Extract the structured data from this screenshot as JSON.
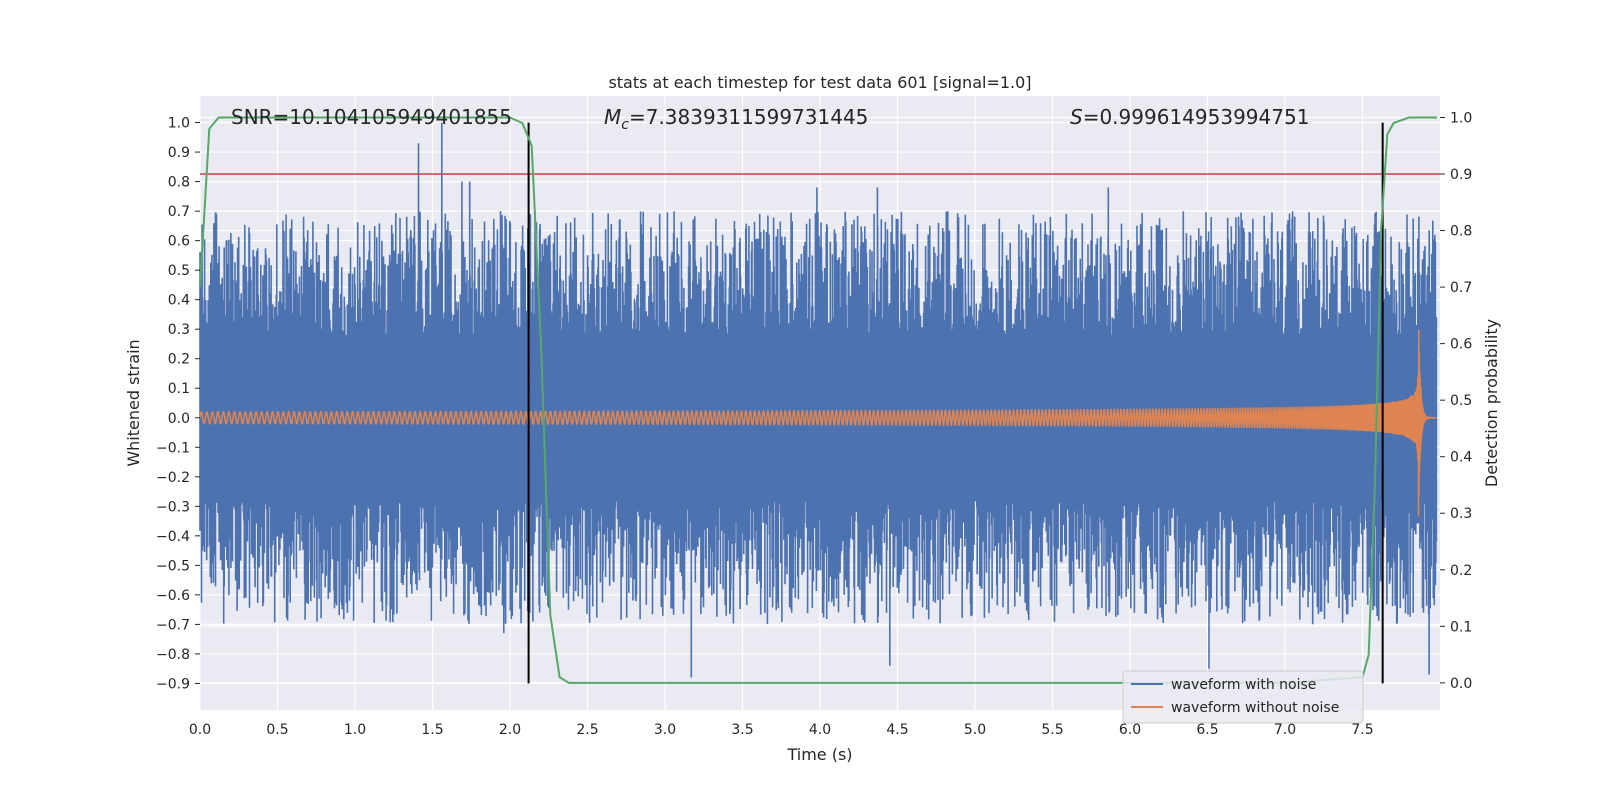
{
  "chart_data": {
    "type": "line",
    "title": "stats at each timestep for test data 601 [signal=1.0]",
    "xlabel": "Time (s)",
    "ylabel": "Whitened strain",
    "y2label": "Detection probability",
    "xlim": [
      0.0,
      8.0
    ],
    "ylim": [
      -0.99,
      1.09
    ],
    "y2lim": [
      -0.048,
      1.038
    ],
    "x_ticks": [
      "0.0",
      "0.5",
      "1.0",
      "1.5",
      "2.0",
      "2.5",
      "3.0",
      "3.5",
      "4.0",
      "4.5",
      "5.0",
      "5.5",
      "6.0",
      "6.5",
      "7.0",
      "7.5"
    ],
    "y_ticks": [
      "1.0",
      "0.9",
      "0.8",
      "0.7",
      "0.6",
      "0.5",
      "0.4",
      "0.3",
      "0.2",
      "0.1",
      "0.0",
      "−0.1",
      "−0.2",
      "−0.3",
      "−0.4",
      "−0.5",
      "−0.6",
      "−0.7",
      "−0.8",
      "−0.9"
    ],
    "y2_ticks": [
      "1.0",
      "0.9",
      "0.8",
      "0.7",
      "0.6",
      "0.5",
      "0.4",
      "0.3",
      "0.2",
      "0.1",
      "0.0"
    ],
    "grid": true,
    "annotations": {
      "snr": "SNR=10.104105949401855",
      "mc_symbol": "M",
      "mc_sub": "c",
      "mc_value": "=7.3839311599731445",
      "s_symbol": "S",
      "s_value": "=0.999614953994751"
    },
    "threshold": {
      "axis": "right",
      "value": 0.9,
      "color": "#c44e52"
    },
    "vertical_lines": [
      {
        "x": 2.12,
        "y_from": -0.9,
        "y_to": 1.0,
        "color": "#000000"
      },
      {
        "x": 7.63,
        "y_from": -0.9,
        "y_to": 1.0,
        "color": "#000000"
      }
    ],
    "series": [
      {
        "name": "waveform with noise",
        "axis": "left",
        "color": "#4c72b0",
        "description_of_shape": "noise",
        "envelope_bulk": [
          -0.25,
          0.25
        ],
        "spikes": [
          {
            "x": 1.41,
            "y": 0.93
          },
          {
            "x": 1.56,
            "y": 1.0
          },
          {
            "x": 1.69,
            "y": 0.8
          },
          {
            "x": 1.74,
            "y": 0.8
          },
          {
            "x": 3.17,
            "y": -0.88
          },
          {
            "x": 4.45,
            "y": -0.84
          },
          {
            "x": 3.98,
            "y": 0.78
          },
          {
            "x": 4.37,
            "y": 0.78
          },
          {
            "x": 5.86,
            "y": 0.78
          },
          {
            "x": 6.51,
            "y": -0.85
          },
          {
            "x": 7.93,
            "y": -0.87
          },
          {
            "x": 1.96,
            "y": -0.73
          }
        ]
      },
      {
        "name": "waveform without noise",
        "axis": "left",
        "color": "#dd8452",
        "description_of_shape": "chirp",
        "amp_start": 0.02,
        "amp_peak": 0.38,
        "x_merger": 7.86,
        "x_end": 7.98
      },
      {
        "name": "",
        "axis": "right",
        "color": "#55a868",
        "x": [
          0.0,
          0.06,
          0.12,
          1.5,
          2.0,
          2.08,
          2.14,
          2.2,
          2.26,
          2.32,
          2.38,
          2.5,
          3.0,
          5.0,
          7.0,
          7.5,
          7.54,
          7.58,
          7.62,
          7.66,
          7.7,
          7.8,
          7.98
        ],
        "values": [
          0.7,
          0.98,
          1.0,
          1.0,
          1.0,
          0.99,
          0.95,
          0.6,
          0.12,
          0.01,
          0.0,
          0.0,
          0.0,
          0.0,
          0.0,
          0.01,
          0.05,
          0.35,
          0.8,
          0.97,
          0.99,
          1.0,
          1.0
        ]
      }
    ],
    "legend": {
      "placement": "lower-right",
      "entries": [
        {
          "label": "waveform with noise",
          "color": "#4c72b0"
        },
        {
          "label": "waveform without noise",
          "color": "#dd8452"
        }
      ]
    },
    "colors": {
      "plot_background": "#eaeaf2",
      "grid": "#ffffff"
    }
  }
}
